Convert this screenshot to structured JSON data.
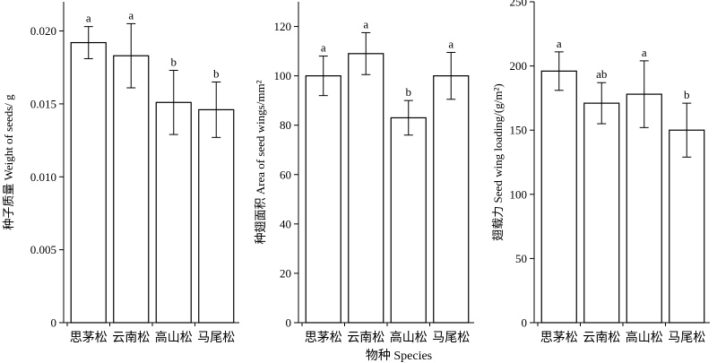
{
  "xlabel": "物种 Species",
  "chart_data": [
    {
      "type": "bar",
      "categories": [
        "思茅松",
        "云南松",
        "高山松",
        "马尾松"
      ],
      "values": [
        0.0192,
        0.0183,
        0.0151,
        0.0146
      ],
      "errors": [
        0.0011,
        0.0022,
        0.0022,
        0.0019
      ],
      "significance": [
        "a",
        "a",
        "b",
        "b"
      ],
      "ylabel": "种子质量 Weight of seeds/ g",
      "ylim": [
        0,
        0.022
      ],
      "yticks": [
        0,
        0.005,
        0.01,
        0.015,
        0.02
      ],
      "ytick_labels": [
        "0",
        "0.005",
        "0.010",
        "0.015",
        "0.020"
      ],
      "grid": false
    },
    {
      "type": "bar",
      "categories": [
        "思茅松",
        "云南松",
        "高山松",
        "马尾松"
      ],
      "values": [
        100,
        109,
        83,
        100
      ],
      "errors": [
        8,
        8.5,
        7,
        9.5
      ],
      "significance": [
        "a",
        "a",
        "b",
        "a"
      ],
      "ylabel": "种翅面积 Area of seed wings/mm²",
      "ylim": [
        0,
        130
      ],
      "yticks": [
        0,
        20,
        40,
        60,
        80,
        100,
        120
      ],
      "ytick_labels": [
        "0",
        "20",
        "40",
        "60",
        "80",
        "100",
        "120"
      ],
      "grid": false
    },
    {
      "type": "bar",
      "categories": [
        "思茅松",
        "云南松",
        "高山松",
        "马尾松"
      ],
      "values": [
        196,
        171,
        178,
        150
      ],
      "errors": [
        15,
        16,
        26,
        21
      ],
      "significance": [
        "a",
        "ab",
        "a",
        "b"
      ],
      "ylabel": "翅载力 Seed wing loading/(g/m²)",
      "ylim": [
        0,
        250
      ],
      "yticks": [
        0,
        50,
        100,
        150,
        200,
        250
      ],
      "ytick_labels": [
        "0",
        "50",
        "100",
        "150",
        "200",
        "250"
      ],
      "grid": false
    }
  ]
}
